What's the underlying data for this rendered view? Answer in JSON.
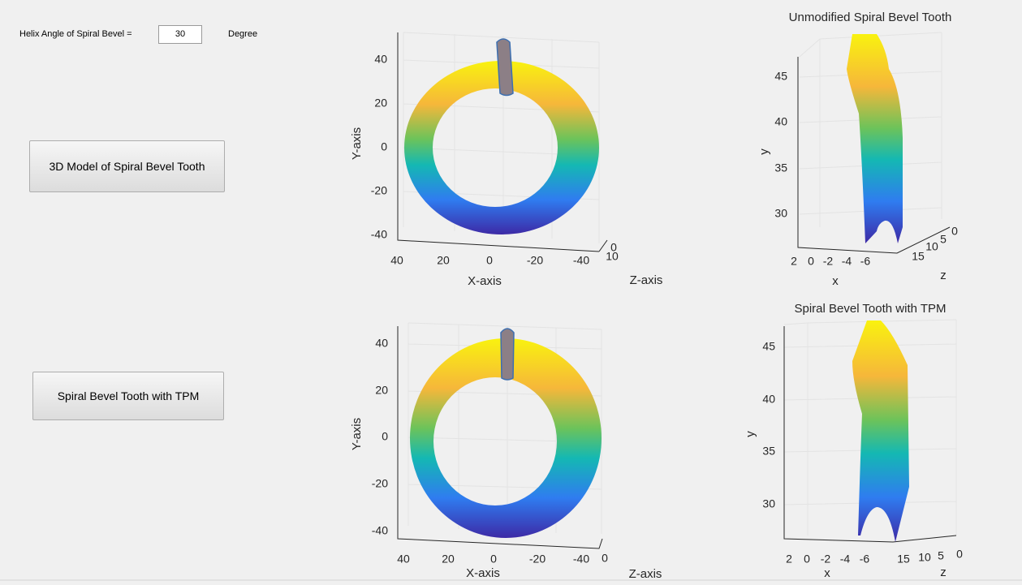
{
  "input": {
    "label": "Helix Angle of Spiral Bevel =",
    "value": "30",
    "unit": "Degree"
  },
  "buttons": [
    "3D Model of Spiral Bevel Tooth",
    "Spiral Bevel Tooth with TPM"
  ],
  "plots": [
    {
      "x_label": "X-axis",
      "y_label": "Y-axis",
      "z_label": "Z-axis",
      "x_ticks": [
        40,
        20,
        0,
        -20,
        -40
      ],
      "y_ticks": [
        40,
        20,
        0,
        -20,
        -40
      ],
      "z_ticks": [
        0,
        10
      ]
    },
    {
      "title": "Unmodified Spiral Bevel Tooth",
      "x_label": "x",
      "y_label": "y",
      "z_label": "z",
      "x_ticks": [
        2,
        0,
        -2,
        -4,
        -6
      ],
      "y_ticks": [
        45,
        40,
        35,
        30
      ],
      "z_ticks": [
        15,
        10,
        5,
        0
      ]
    },
    {
      "x_label": "X-axis",
      "y_label": "Y-axis",
      "z_label": "Z-axis",
      "x_ticks": [
        40,
        20,
        0,
        -20,
        -40
      ],
      "y_ticks": [
        40,
        20,
        0,
        -20,
        -40
      ],
      "z_ticks": [
        0
      ]
    },
    {
      "title": "Spiral Bevel Tooth with TPM",
      "x_label": "x",
      "y_label": "y",
      "z_label": "z",
      "x_ticks": [
        2,
        0,
        -2,
        -4,
        -6
      ],
      "y_ticks": [
        45,
        40,
        35,
        30
      ],
      "z_ticks": [
        15,
        10,
        5,
        0
      ]
    }
  ]
}
